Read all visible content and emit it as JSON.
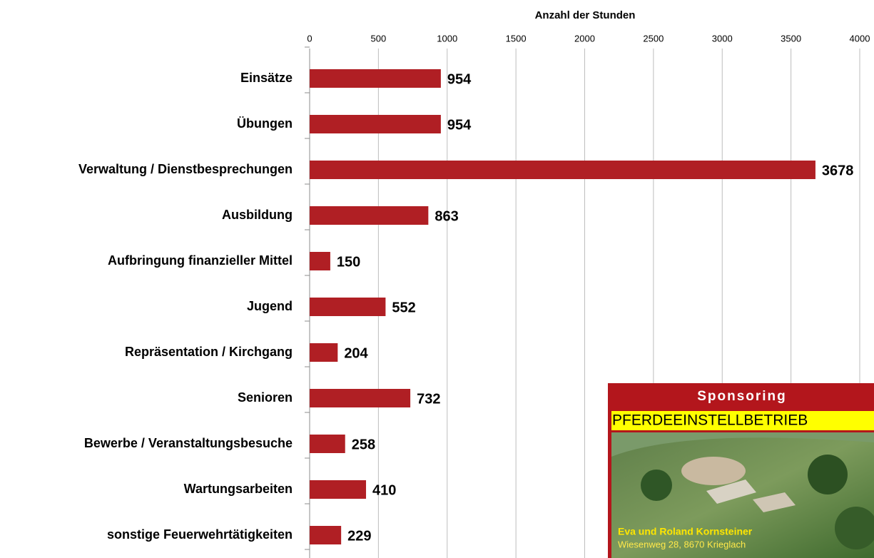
{
  "chart_data": {
    "type": "bar",
    "orientation": "horizontal",
    "xlabel": "Anzahl der Stunden",
    "categories": [
      "Einsätze",
      "Übungen",
      "Verwaltung / Dienstbesprechungen",
      "Ausbildung",
      "Aufbringung finanzieller Mittel",
      "Jugend",
      "Repräsentation / Kirchgang",
      "Senioren",
      "Bewerbe / Veranstaltungsbesuche",
      "Wartungsarbeiten",
      "sonstige Feuerwehrtätigkeiten"
    ],
    "values": [
      954,
      954,
      3678,
      863,
      150,
      552,
      204,
      732,
      258,
      410,
      229
    ],
    "color": "#b01f24",
    "xlim": [
      0,
      4000
    ],
    "xticks": [
      0,
      500,
      1000,
      1500,
      2000,
      2500,
      3000,
      3500,
      4000
    ],
    "grid": true
  },
  "sponsor": {
    "heading": "Sponsoring",
    "banner": "PFERDEEINSTELLBETRIEB",
    "name": "Eva und Roland Kornsteiner",
    "address": "Wiesenweg 28, 8670 Krieglach"
  }
}
